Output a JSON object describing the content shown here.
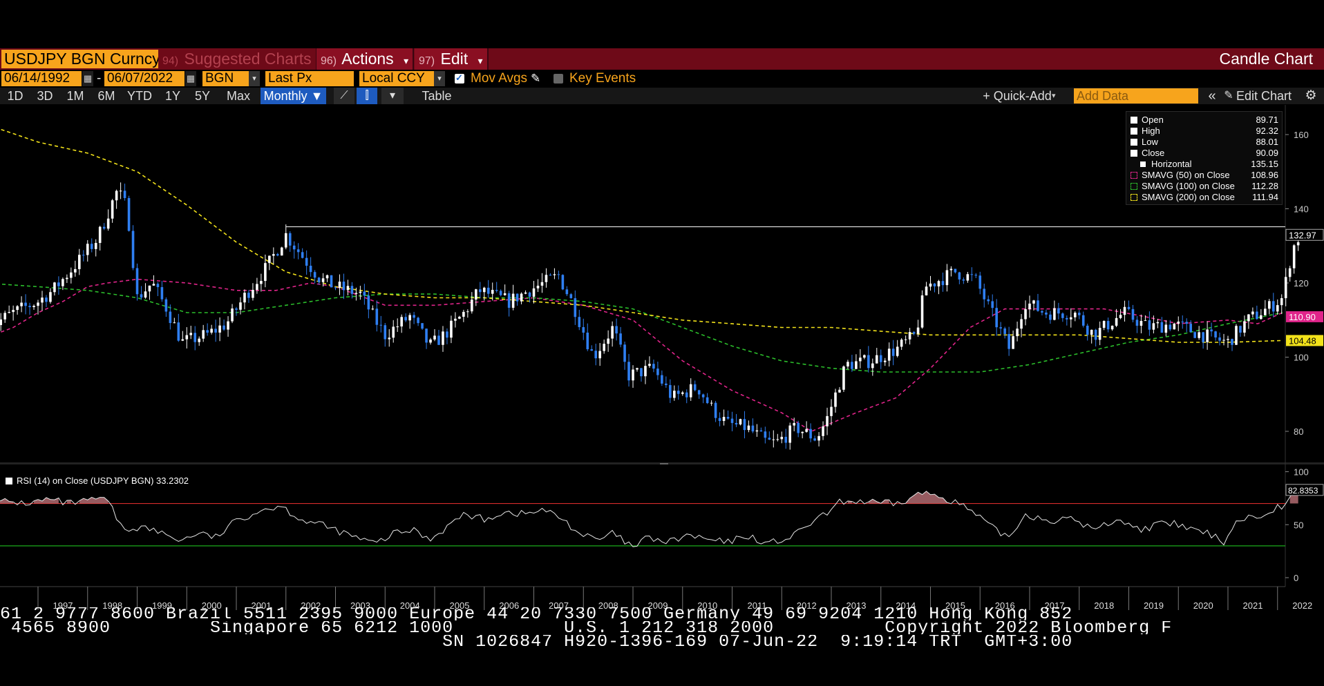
{
  "header": {
    "security": "USDJPY BGN Curncy",
    "suggested_num": "94)",
    "suggested_label": "Suggested Charts",
    "actions_num": "96)",
    "actions_label": "Actions",
    "edit_num": "97)",
    "edit_label": "Edit",
    "chart_type": "Candle Chart"
  },
  "controls": {
    "start_date": "06/14/1992",
    "date_sep": "-",
    "end_date": "06/07/2022",
    "source": "BGN",
    "field": "Last Px",
    "currency": "Local CCY",
    "mov_avgs_label": "Mov Avgs",
    "mov_avgs_checked": true,
    "key_events_label": "Key Events",
    "key_events_checked": false
  },
  "toolbar": {
    "timeframes": [
      "1D",
      "3D",
      "1M",
      "6M",
      "YTD",
      "1Y",
      "5Y",
      "Max"
    ],
    "period": "Monthly ▼",
    "table_label": "Table",
    "quick_add_label": "+ Quick-Add",
    "add_data_placeholder": "Add Data",
    "collapse_label": "«",
    "edit_chart_label": "Edit Chart"
  },
  "legend": {
    "rows": [
      {
        "name": "Open",
        "value": "89.71"
      },
      {
        "name": "High",
        "value": "92.32"
      },
      {
        "name": "Low",
        "value": "88.01"
      },
      {
        "name": "Close",
        "value": "90.09"
      },
      {
        "name": "Horizontal",
        "value": "135.15"
      },
      {
        "name": "SMAVG (50)   on Close",
        "value": "108.96"
      },
      {
        "name": "SMAVG (100)   on Close",
        "value": "112.28"
      },
      {
        "name": "SMAVG (200)   on Close",
        "value": "111.94"
      }
    ]
  },
  "rsi": {
    "label": "RSI (14)   on Close (USDJPY BGN) 33.2302"
  },
  "colors": {
    "accent": "#f7a41c",
    "title_bar": "#6e0a18",
    "candle_up": "#ffffff",
    "candle_down": "#2f7ff2",
    "sma50": "#e0248a",
    "sma100": "#2bbd2b",
    "sma200": "#f2e21a",
    "rsi_upper": "#d62b2b",
    "rsi_lower": "#1fbf1f"
  },
  "chart_data": [
    {
      "type": "candlestick",
      "title": "USDJPY BGN Curncy",
      "x_tick_labels": [
        "1997",
        "1998",
        "1999",
        "2000",
        "2001",
        "2002",
        "2003",
        "2004",
        "2005",
        "2006",
        "2007",
        "2008",
        "2009",
        "2010",
        "2011",
        "2012",
        "2013",
        "2014",
        "2015",
        "2016",
        "2017",
        "2018",
        "2019",
        "2020",
        "2021",
        "2022"
      ],
      "y_tick_labels": [
        "80",
        "100",
        "120",
        "140",
        "160"
      ],
      "ylim": [
        72,
        168
      ],
      "last_price_label": "132.97",
      "last_price": 132.97,
      "horizontal_line": 135.15,
      "sma_end_labels": {
        "sma50": "110.90",
        "sma200": "104.48"
      },
      "sma_end_values": {
        "sma50": 110.9,
        "sma200": 104.48
      },
      "anchors": [
        [
          1996.0,
          108
        ],
        [
          1996.5,
          112
        ],
        [
          1997.0,
          115
        ],
        [
          1997.3,
          118
        ],
        [
          1997.7,
          124
        ],
        [
          1998.2,
          132
        ],
        [
          1998.6,
          145
        ],
        [
          1998.8,
          140
        ],
        [
          1999.0,
          116
        ],
        [
          1999.3,
          120
        ],
        [
          1999.6,
          113
        ],
        [
          1999.9,
          104
        ],
        [
          2000.4,
          106
        ],
        [
          2000.8,
          109
        ],
        [
          2001.2,
          117
        ],
        [
          2001.6,
          124
        ],
        [
          2002.0,
          133
        ],
        [
          2002.4,
          126
        ],
        [
          2002.7,
          121
        ],
        [
          2003.0,
          119
        ],
        [
          2003.5,
          117
        ],
        [
          2003.8,
          110
        ],
        [
          2004.0,
          106
        ],
        [
          2004.5,
          111
        ],
        [
          2004.9,
          103
        ],
        [
          2005.2,
          106
        ],
        [
          2005.6,
          112
        ],
        [
          2005.9,
          118
        ],
        [
          2006.5,
          115
        ],
        [
          2006.9,
          118
        ],
        [
          2007.5,
          122
        ],
        [
          2007.8,
          114
        ],
        [
          2008.2,
          100
        ],
        [
          2008.6,
          108
        ],
        [
          2008.9,
          95
        ],
        [
          2009.4,
          97
        ],
        [
          2009.8,
          89
        ],
        [
          2010.3,
          92
        ],
        [
          2010.6,
          86
        ],
        [
          2010.9,
          82
        ],
        [
          2011.3,
          81
        ],
        [
          2011.7,
          77
        ],
        [
          2011.9,
          77
        ],
        [
          2012.3,
          81
        ],
        [
          2012.7,
          78
        ],
        [
          2012.9,
          83
        ],
        [
          2013.3,
          98
        ],
        [
          2013.8,
          99
        ],
        [
          2014.3,
          102
        ],
        [
          2014.7,
          106
        ],
        [
          2014.9,
          119
        ],
        [
          2015.5,
          123
        ],
        [
          2015.9,
          121
        ],
        [
          2016.3,
          110
        ],
        [
          2016.6,
          102
        ],
        [
          2016.9,
          115
        ],
        [
          2017.3,
          112
        ],
        [
          2017.9,
          112
        ],
        [
          2018.3,
          106
        ],
        [
          2018.9,
          112
        ],
        [
          2019.4,
          108
        ],
        [
          2019.9,
          109
        ],
        [
          2020.3,
          107
        ],
        [
          2020.7,
          105
        ],
        [
          2021.0,
          104
        ],
        [
          2021.4,
          110
        ],
        [
          2021.9,
          114
        ],
        [
          2022.1,
          116
        ],
        [
          2022.3,
          129
        ],
        [
          2022.4,
          132
        ]
      ],
      "series": [
        {
          "key": "sma50",
          "style": "dashed",
          "points": [
            [
              1995.9,
              105
            ],
            [
              1996.5,
              108
            ],
            [
              1997.0,
              112
            ],
            [
              1997.5,
              115
            ],
            [
              1998.0,
              119
            ],
            [
              1998.4,
              120
            ],
            [
              1999.0,
              121
            ],
            [
              2000.0,
              120
            ],
            [
              2001.0,
              118
            ],
            [
              2001.8,
              118
            ],
            [
              2002.5,
              120
            ],
            [
              2003.0,
              119
            ],
            [
              2004.0,
              114
            ],
            [
              2005.0,
              114
            ],
            [
              2006.0,
              115
            ],
            [
              2007.0,
              116
            ],
            [
              2008.0,
              114
            ],
            [
              2009.0,
              110
            ],
            [
              2010.0,
              99
            ],
            [
              2011.0,
              91
            ],
            [
              2012.0,
              85
            ],
            [
              2012.6,
              80
            ],
            [
              2013.5,
              85
            ],
            [
              2014.3,
              89
            ],
            [
              2015.0,
              97
            ],
            [
              2015.8,
              108
            ],
            [
              2016.5,
              113
            ],
            [
              2017.5,
              113
            ],
            [
              2018.5,
              113
            ],
            [
              2019.3,
              111
            ],
            [
              2020.0,
              109
            ],
            [
              2021.0,
              110
            ],
            [
              2021.6,
              109
            ],
            [
              2022.1,
              112
            ]
          ]
        },
        {
          "key": "sma100",
          "style": "dashed",
          "points": [
            [
              1995.9,
              120
            ],
            [
              1997.0,
              119
            ],
            [
              1998.0,
              118
            ],
            [
              1999.0,
              116
            ],
            [
              2000.0,
              112
            ],
            [
              2001.0,
              112
            ],
            [
              2002.0,
              114
            ],
            [
              2003.0,
              116
            ],
            [
              2004.0,
              117
            ],
            [
              2005.0,
              117
            ],
            [
              2006.0,
              116
            ],
            [
              2007.0,
              116
            ],
            [
              2008.0,
              115
            ],
            [
              2009.0,
              113
            ],
            [
              2010.0,
              108
            ],
            [
              2011.0,
              103
            ],
            [
              2012.0,
              99
            ],
            [
              2013.0,
              97
            ],
            [
              2014.0,
              96
            ],
            [
              2015.0,
              96
            ],
            [
              2016.0,
              96
            ],
            [
              2017.0,
              98
            ],
            [
              2018.0,
              101
            ],
            [
              2019.0,
              104
            ],
            [
              2020.0,
              106
            ],
            [
              2021.0,
              109
            ],
            [
              2022.1,
              112
            ]
          ]
        },
        {
          "key": "sma200",
          "style": "dashed",
          "points": [
            [
              1995.9,
              163
            ],
            [
              1997.0,
              158
            ],
            [
              1998.0,
              155
            ],
            [
              1999.0,
              150
            ],
            [
              2000.0,
              141
            ],
            [
              2001.0,
              131
            ],
            [
              2002.0,
              123
            ],
            [
              2003.0,
              119
            ],
            [
              2004.0,
              117
            ],
            [
              2005.0,
              116
            ],
            [
              2006.0,
              116
            ],
            [
              2007.0,
              115
            ],
            [
              2008.0,
              114
            ],
            [
              2009.0,
              112
            ],
            [
              2010.0,
              110
            ],
            [
              2011.0,
              109
            ],
            [
              2012.0,
              108
            ],
            [
              2013.0,
              108
            ],
            [
              2014.0,
              107
            ],
            [
              2015.0,
              106
            ],
            [
              2016.0,
              106
            ],
            [
              2017.0,
              106
            ],
            [
              2018.0,
              106
            ],
            [
              2019.0,
              105
            ],
            [
              2020.0,
              104
            ],
            [
              2021.0,
              104
            ],
            [
              2022.1,
              104.48
            ]
          ]
        }
      ]
    },
    {
      "type": "line",
      "title": "RSI (14)",
      "y_tick_labels": [
        "0",
        "50",
        "100"
      ],
      "ylim": [
        0,
        100
      ],
      "upper_band": 70,
      "lower_band": 30,
      "last_value_label": "82.8353",
      "last_value": 82.8353,
      "anchors": [
        [
          1996.0,
          68
        ],
        [
          1996.3,
          72
        ],
        [
          1996.8,
          70
        ],
        [
          1997.2,
          74
        ],
        [
          1997.6,
          70
        ],
        [
          1998.0,
          72
        ],
        [
          1998.3,
          76
        ],
        [
          1998.5,
          65
        ],
        [
          1998.7,
          45
        ],
        [
          1999.1,
          48
        ],
        [
          1999.5,
          42
        ],
        [
          1999.9,
          35
        ],
        [
          2000.2,
          42
        ],
        [
          2000.6,
          38
        ],
        [
          2001.0,
          54
        ],
        [
          2001.5,
          64
        ],
        [
          2001.9,
          68
        ],
        [
          2002.3,
          55
        ],
        [
          2002.7,
          50
        ],
        [
          2003.0,
          45
        ],
        [
          2003.4,
          38
        ],
        [
          2003.8,
          32
        ],
        [
          2004.2,
          42
        ],
        [
          2004.6,
          45
        ],
        [
          2004.9,
          36
        ],
        [
          2005.3,
          50
        ],
        [
          2005.6,
          60
        ],
        [
          2006.0,
          55
        ],
        [
          2006.4,
          62
        ],
        [
          2006.8,
          60
        ],
        [
          2007.2,
          64
        ],
        [
          2007.6,
          55
        ],
        [
          2007.9,
          42
        ],
        [
          2008.3,
          35
        ],
        [
          2008.6,
          42
        ],
        [
          2009.0,
          28
        ],
        [
          2009.3,
          38
        ],
        [
          2009.7,
          33
        ],
        [
          2010.1,
          40
        ],
        [
          2010.5,
          36
        ],
        [
          2010.9,
          33
        ],
        [
          2011.3,
          40
        ],
        [
          2011.7,
          32
        ],
        [
          2012.2,
          38
        ],
        [
          2012.6,
          52
        ],
        [
          2012.9,
          60
        ],
        [
          2013.2,
          72
        ],
        [
          2013.6,
          72
        ],
        [
          2014.0,
          70
        ],
        [
          2014.4,
          70
        ],
        [
          2014.8,
          80
        ],
        [
          2015.1,
          78
        ],
        [
          2015.5,
          72
        ],
        [
          2015.9,
          60
        ],
        [
          2016.3,
          45
        ],
        [
          2016.6,
          38
        ],
        [
          2016.9,
          60
        ],
        [
          2017.4,
          54
        ],
        [
          2017.9,
          55
        ],
        [
          2018.3,
          45
        ],
        [
          2018.8,
          56
        ],
        [
          2019.2,
          45
        ],
        [
          2019.6,
          50
        ],
        [
          2019.9,
          51
        ],
        [
          2020.3,
          45
        ],
        [
          2020.7,
          40
        ],
        [
          2020.9,
          33
        ],
        [
          2021.2,
          55
        ],
        [
          2021.6,
          58
        ],
        [
          2021.9,
          65
        ],
        [
          2022.1,
          68
        ],
        [
          2022.3,
          78
        ],
        [
          2022.45,
          83
        ]
      ]
    }
  ],
  "footer": {
    "line1": "61 2 9777 8600 Brazil 5511 2395 9000 Europe 44 20 7330 7500 Germany 49 69 9204 1210 Hong Kong 852",
    "line2": " 4565 8900         Singapore 65 6212 1000          U.S. 1 212 318 2000          Copyright 2022 Bloomberg F",
    "line3": "                                        SN 1026847 H920-1396-169 07-Jun-22  9:19:14 TRT  GMT+3:00"
  }
}
